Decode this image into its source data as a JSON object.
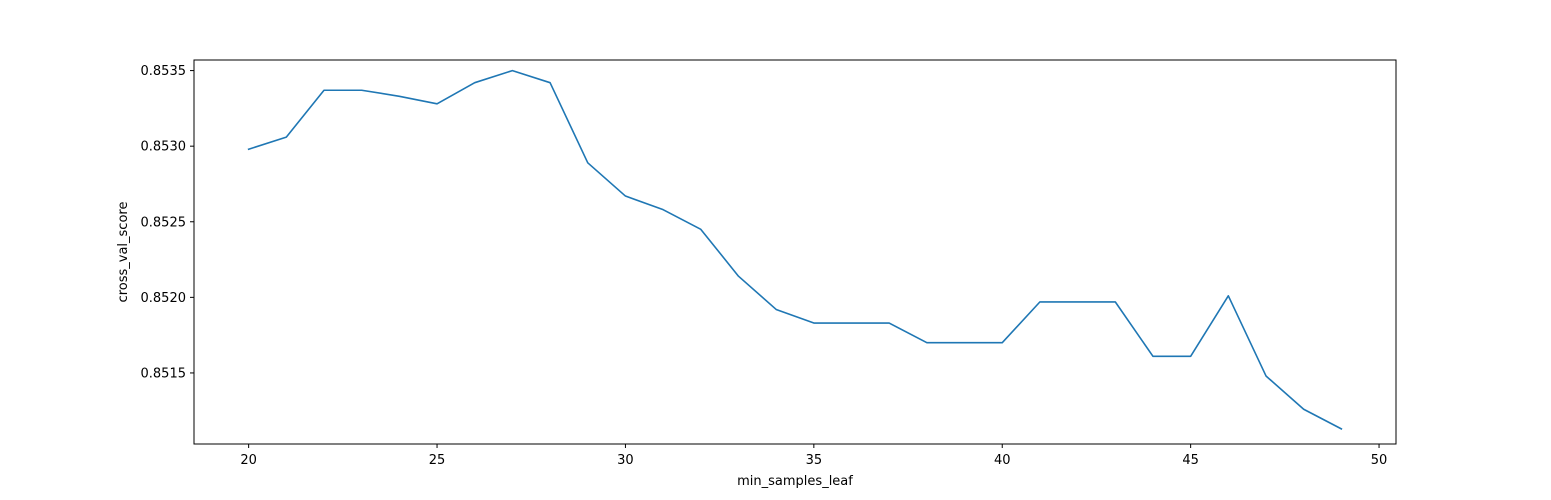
{
  "chart_data": {
    "type": "line",
    "title": "",
    "xlabel": "min_samples_leaf",
    "ylabel": "cross_val_score",
    "xlim": [
      18.55,
      50.45
    ],
    "ylim": [
      0.85103,
      0.85357
    ],
    "x_ticks": [
      20,
      25,
      30,
      35,
      40,
      45,
      50
    ],
    "x_tick_labels": [
      "20",
      "25",
      "30",
      "35",
      "40",
      "45",
      "50"
    ],
    "y_ticks": [
      0.8515,
      0.852,
      0.8525,
      0.853,
      0.8535
    ],
    "y_tick_labels": [
      "0.8515",
      "0.8520",
      "0.8525",
      "0.8530",
      "0.8535"
    ],
    "grid": false,
    "line_color": "#1f77b4",
    "series": [
      {
        "x": [
          20,
          21,
          22,
          23,
          24,
          25,
          26,
          27,
          28,
          29,
          30,
          31,
          32,
          33,
          34,
          35,
          36,
          37,
          38,
          39,
          40,
          41,
          42,
          43,
          44,
          45,
          46,
          47,
          48,
          49
        ],
        "values": [
          0.85298,
          0.85306,
          0.85337,
          0.85337,
          0.85333,
          0.85328,
          0.85342,
          0.8535,
          0.85342,
          0.85289,
          0.85267,
          0.85258,
          0.85245,
          0.85214,
          0.85192,
          0.85183,
          0.85183,
          0.85183,
          0.8517,
          0.8517,
          0.8517,
          0.85197,
          0.85197,
          0.85197,
          0.85161,
          0.85161,
          0.85201,
          0.85148,
          0.85126,
          0.85113
        ]
      }
    ]
  }
}
